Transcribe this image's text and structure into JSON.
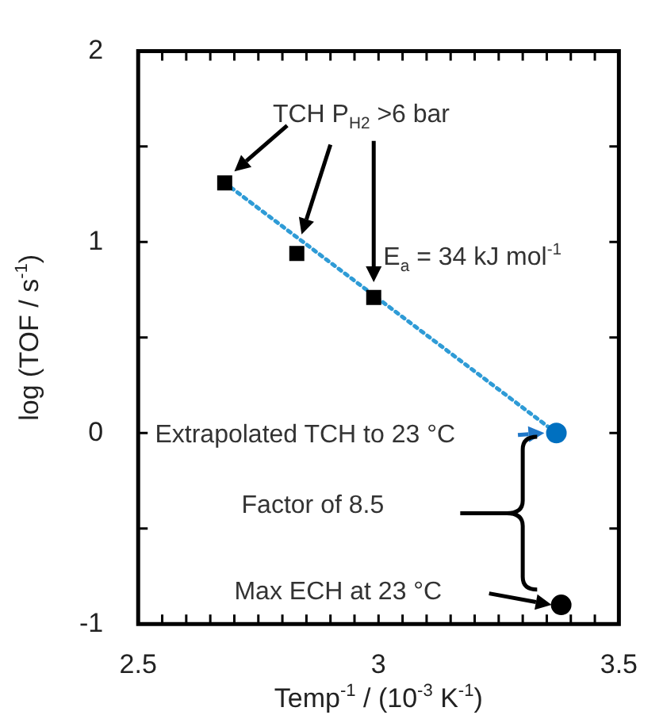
{
  "chart_data": {
    "type": "scatter",
    "xlabel": "Temp$^{-1}$ / (10$^{-3}$ K$^{-1}$)",
    "ylabel": "log (TOF / s$^{-1}$)",
    "xlim": [
      2.5,
      3.5
    ],
    "ylim": [
      -1,
      2
    ],
    "xticks": [
      2.5,
      {
        "value": 2.55,
        "label": null
      },
      {
        "value": 2.6,
        "label": null
      },
      {
        "value": 2.65,
        "label": null
      },
      {
        "value": 2.7,
        "label": null
      },
      {
        "value": 2.75,
        "label": null
      },
      {
        "value": 2.8,
        "label": null
      },
      {
        "value": 2.85,
        "label": null
      },
      {
        "value": 2.9,
        "label": null
      },
      {
        "value": 2.95,
        "label": null
      },
      3,
      {
        "value": 3.05,
        "label": null
      },
      {
        "value": 3.1,
        "label": null
      },
      {
        "value": 3.15,
        "label": null
      },
      {
        "value": 3.2,
        "label": null
      },
      {
        "value": 3.25,
        "label": null
      },
      {
        "value": 3.3,
        "label": null
      },
      {
        "value": 3.35,
        "label": null
      },
      {
        "value": 3.4,
        "label": null
      },
      {
        "value": 3.45,
        "label": null
      },
      3.5
    ],
    "yticks": [
      -1,
      {
        "value": -0.5,
        "label": null
      },
      0,
      {
        "value": 0.5,
        "label": null
      },
      1,
      {
        "value": 1.5,
        "label": null
      },
      2
    ],
    "grid": false,
    "legend": false,
    "series": [
      {
        "type": "line",
        "color": "#2e9bd6",
        "x": [
          2.68,
          3.37
        ],
        "values": [
          1.31,
          0
        ],
        "marker": "none",
        "line_style": "dotted"
      },
      {
        "color": "#000000",
        "x": [
          2.68,
          2.83,
          2.99
        ],
        "values": [
          1.31,
          0.94,
          0.71
        ],
        "marker": "square"
      },
      {
        "color": "#0070c0",
        "x": [
          3.37
        ],
        "values": [
          0
        ],
        "marker": "circle"
      },
      {
        "color": "#000000",
        "x": [
          3.38
        ],
        "values": [
          -0.9
        ],
        "marker": "circle"
      }
    ],
    "annotations": [
      "TCH P$_{H2}$ >6 bar",
      "E$_{a}$ = 34 kJ mol$^{-1}$",
      "Extrapolated TCH to 23 °C",
      "Factor of 8.5",
      "Max ECH at 23 °C"
    ]
  }
}
